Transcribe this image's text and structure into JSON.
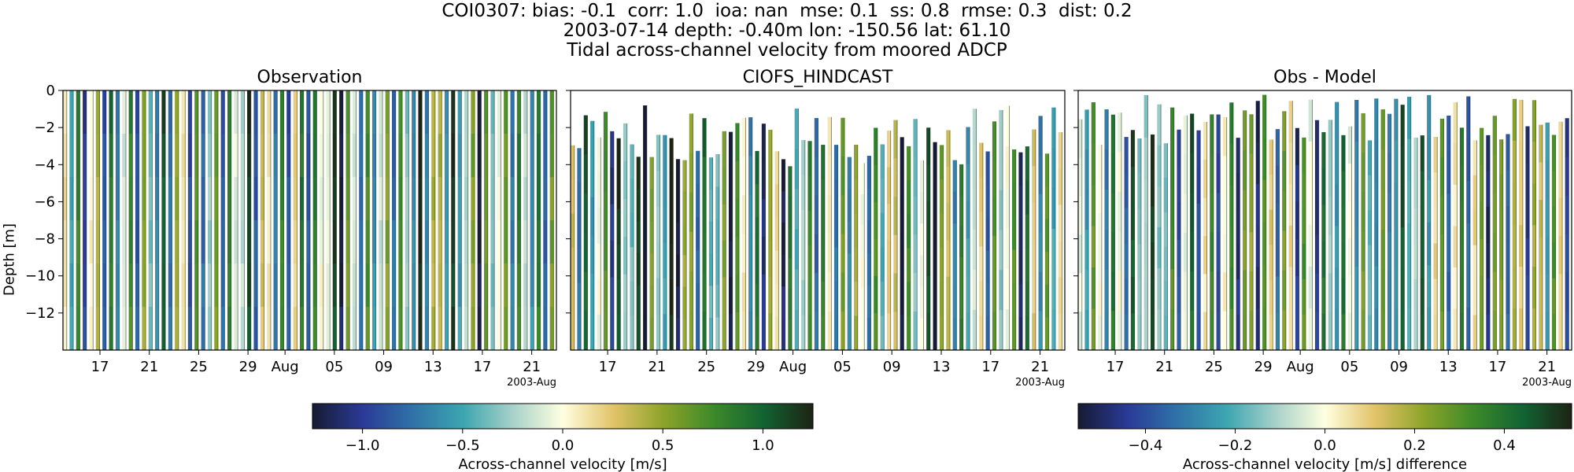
{
  "figure": {
    "title_line1": "COI0307: bias: -0.1  corr: 1.0  ioa: nan  mse: 0.1  ss: 0.8  rmse: 0.3  dist: 0.2",
    "title_line2": "2003-07-14 depth: -0.40m lon: -150.56 lat: 61.10",
    "title_line3": "Tidal across-channel velocity from moored ADCP",
    "ylabel": "Depth [m]"
  },
  "chart_data": [
    {
      "type": "heatmap",
      "title": "Observation",
      "ylabel": "Depth [m]",
      "ylim": [
        -14,
        0
      ],
      "yticks": [
        0,
        -2,
        -4,
        -6,
        -8,
        -10,
        -12
      ],
      "xlim": [
        "2003-07-14",
        "2003-08-23"
      ],
      "xticks": [
        "17",
        "21",
        "25",
        "29",
        "Aug",
        "05",
        "09",
        "13",
        "17",
        "21"
      ],
      "x_offset_label": "2003-Aug",
      "colormap": "delta",
      "vmin": -1.25,
      "vmax": 1.25
    },
    {
      "type": "heatmap",
      "title": "CIOFS_HINDCAST",
      "ylim": [
        -14,
        0
      ],
      "xlim": [
        "2003-07-14",
        "2003-08-23"
      ],
      "xticks": [
        "17",
        "21",
        "25",
        "29",
        "Aug",
        "05",
        "09",
        "13",
        "17",
        "21"
      ],
      "x_offset_label": "2003-Aug",
      "colormap": "delta",
      "vmin": -1.25,
      "vmax": 1.25
    },
    {
      "type": "heatmap",
      "title": "Obs - Model",
      "ylim": [
        -14,
        0
      ],
      "xlim": [
        "2003-07-14",
        "2003-08-23"
      ],
      "xticks": [
        "17",
        "21",
        "25",
        "29",
        "Aug",
        "05",
        "09",
        "13",
        "17",
        "21"
      ],
      "x_offset_label": "2003-Aug",
      "colormap": "delta",
      "vmin": -0.55,
      "vmax": 0.55
    }
  ],
  "colorbars": [
    {
      "label": "Across-channel velocity [m/s]",
      "ticks": [
        "-1.0",
        "-0.5",
        "0.0",
        "0.5",
        "1.0"
      ],
      "tick_values": [
        -1.0,
        -0.5,
        0.0,
        0.5,
        1.0
      ],
      "vmin": -1.25,
      "vmax": 1.25
    },
    {
      "label": "Across-channel velocity [m/s] difference",
      "ticks": [
        "-0.4",
        "-0.2",
        "0.0",
        "0.2",
        "0.4"
      ],
      "tick_values": [
        -0.4,
        -0.2,
        0.0,
        0.2,
        0.4
      ],
      "vmin": -0.55,
      "vmax": 0.55
    }
  ],
  "colormap_stops": [
    "#161b33",
    "#2a3a96",
    "#2f72a8",
    "#3ca5b0",
    "#a7d1c9",
    "#ffffe0",
    "#e3c46a",
    "#8ea42a",
    "#3d8a2a",
    "#126433",
    "#1d2313"
  ]
}
